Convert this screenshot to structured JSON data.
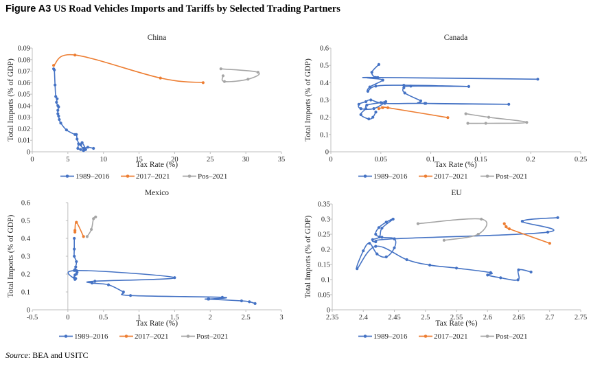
{
  "figure": {
    "label": "Figure A3",
    "title": "US Road Vehicles Imports and Tariffs by Selected Trading Partners",
    "source_label": "Source",
    "source_text": ": BEA and USITC"
  },
  "colors": {
    "series_1989_2016": "#4472C4",
    "series_2017_2021": "#ED7D31",
    "series_post_2021": "#A5A5A5"
  },
  "chart_data": [
    {
      "type": "line",
      "title": "China",
      "xlabel": "Tax Rate (%)",
      "ylabel": "Total Imports (% of GDP)",
      "xlim": [
        0,
        35
      ],
      "ylim": [
        0,
        0.09
      ],
      "xticks": [
        0,
        5,
        10,
        15,
        20,
        25,
        30,
        35
      ],
      "yticks": [
        0,
        0.01,
        0.02,
        0.03,
        0.04,
        0.05,
        0.06,
        0.07,
        0.08,
        0.09
      ],
      "xtick_labels": [
        "0",
        "5",
        "10",
        "15",
        "20",
        "25",
        "30",
        "35"
      ],
      "ytick_labels": [
        "0",
        "0.01",
        "0.02",
        "0.03",
        "0.04",
        "0.05",
        "0.06",
        "0.07",
        "0.08",
        "0.09"
      ],
      "grid": false,
      "legend_position": "bottom",
      "series": [
        {
          "name": "1989–2016",
          "color": "#4472C4",
          "points": [
            [
              8.6,
              0.003
            ],
            [
              7.8,
              0.004
            ],
            [
              7.2,
              0.003
            ],
            [
              6.8,
              0.006
            ],
            [
              7.0,
              0.008
            ],
            [
              7.5,
              0.002
            ],
            [
              7.2,
              0.001
            ],
            [
              6.8,
              0.002
            ],
            [
              6.4,
              0.003
            ],
            [
              6.5,
              0.007
            ],
            [
              6.3,
              0.011
            ],
            [
              6.2,
              0.015
            ],
            [
              6.0,
              0.015
            ],
            [
              4.8,
              0.019
            ],
            [
              4.0,
              0.025
            ],
            [
              3.8,
              0.028
            ],
            [
              3.7,
              0.031
            ],
            [
              3.6,
              0.033
            ],
            [
              3.6,
              0.036
            ],
            [
              3.7,
              0.039
            ],
            [
              3.6,
              0.04
            ],
            [
              3.4,
              0.043
            ],
            [
              3.5,
              0.046
            ],
            [
              3.3,
              0.048
            ],
            [
              3.2,
              0.058
            ],
            [
              3.1,
              0.071
            ],
            [
              3.0,
              0.072
            ]
          ]
        },
        {
          "name": "2017–2021",
          "color": "#ED7D31",
          "points": [
            [
              3.0,
              0.075
            ],
            [
              6.0,
              0.084
            ],
            [
              18.0,
              0.064
            ],
            [
              24.0,
              0.06
            ]
          ]
        },
        {
          "name": "Pos–2021",
          "color": "#A5A5A5",
          "points": [
            [
              26.5,
              0.072
            ],
            [
              31.7,
              0.069
            ],
            [
              30.3,
              0.063
            ],
            [
              27.0,
              0.061
            ],
            [
              26.8,
              0.066
            ]
          ]
        }
      ]
    },
    {
      "type": "line",
      "title": "Canada",
      "xlabel": "Tax Rate (%)",
      "ylabel": "Total Imports (% of GDP)",
      "xlim": [
        0,
        0.25
      ],
      "ylim": [
        0,
        0.6
      ],
      "xticks": [
        0,
        0.05,
        0.1,
        0.15,
        0.2,
        0.25
      ],
      "yticks": [
        0,
        0.1,
        0.2,
        0.3,
        0.4,
        0.5,
        0.6
      ],
      "xtick_labels": [
        "0",
        "0.05",
        "0.1",
        "0.15",
        "0.2",
        "0.25"
      ],
      "ytick_labels": [
        "0",
        "0.1",
        "0.2",
        "0.3",
        "0.4",
        "0.5",
        "0.6"
      ],
      "grid": false,
      "legend_position": "bottom",
      "series": [
        {
          "name": "1989–2016",
          "color": "#4472C4",
          "points": [
            [
              0.048,
              0.505
            ],
            [
              0.041,
              0.46
            ],
            [
              0.044,
              0.43
            ],
            [
              0.045,
              0.43
            ],
            [
              0.207,
              0.42
            ],
            [
              0.047,
              0.43
            ],
            [
              0.052,
              0.415
            ],
            [
              0.039,
              0.375
            ],
            [
              0.037,
              0.35
            ],
            [
              0.045,
              0.38
            ],
            [
              0.073,
              0.385
            ],
            [
              0.138,
              0.378
            ],
            [
              0.08,
              0.38
            ],
            [
              0.073,
              0.37
            ],
            [
              0.074,
              0.34
            ],
            [
              0.09,
              0.295
            ],
            [
              0.094,
              0.28
            ],
            [
              0.178,
              0.275
            ],
            [
              0.095,
              0.28
            ],
            [
              0.054,
              0.28
            ],
            [
              0.04,
              0.3
            ],
            [
              0.035,
              0.29
            ],
            [
              0.028,
              0.275
            ],
            [
              0.03,
              0.25
            ],
            [
              0.043,
              0.25
            ],
            [
              0.055,
              0.29
            ],
            [
              0.05,
              0.285
            ],
            [
              0.036,
              0.27
            ],
            [
              0.035,
              0.25
            ],
            [
              0.03,
              0.215
            ],
            [
              0.038,
              0.19
            ],
            [
              0.042,
              0.2
            ],
            [
              0.045,
              0.23
            ]
          ]
        },
        {
          "name": "2017–2021",
          "color": "#ED7D31",
          "points": [
            [
              0.048,
              0.25
            ],
            [
              0.052,
              0.255
            ],
            [
              0.057,
              0.255
            ],
            [
              0.117,
              0.198
            ]
          ]
        },
        {
          "name": "Post–2021",
          "color": "#A5A5A5",
          "points": [
            [
              0.135,
              0.22
            ],
            [
              0.158,
              0.2
            ],
            [
              0.196,
              0.17
            ],
            [
              0.155,
              0.165
            ],
            [
              0.137,
              0.165
            ]
          ]
        }
      ]
    },
    {
      "type": "line",
      "title": "Mexico",
      "xlabel": "Tax Rate (%)",
      "ylabel": "Total Imports (% of GDP)",
      "xlim": [
        -0.5,
        3
      ],
      "ylim": [
        0,
        0.6
      ],
      "xticks": [
        -0.5,
        0,
        0.5,
        1,
        1.5,
        2,
        2.5,
        3
      ],
      "yticks": [
        0,
        0.1,
        0.2,
        0.3,
        0.4,
        0.5,
        0.6
      ],
      "xtick_labels": [
        "-0.5",
        "0",
        "0.5",
        "1",
        "1.5",
        "2",
        "2.5",
        "3"
      ],
      "ytick_labels": [
        "0",
        "0.1",
        "0.2",
        "0.3",
        "0.4",
        "0.5",
        "0.6"
      ],
      "grid": false,
      "legend_position": "bottom",
      "series": [
        {
          "name": "1989–2016",
          "color": "#4472C4",
          "points": [
            [
              0.09,
              0.4
            ],
            [
              0.09,
              0.34
            ],
            [
              0.09,
              0.3
            ],
            [
              0.12,
              0.27
            ],
            [
              0.11,
              0.24
            ],
            [
              0.1,
              0.225
            ],
            [
              0.09,
              0.22
            ],
            [
              0.13,
              0.21
            ],
            [
              0.12,
              0.2
            ],
            [
              0.1,
              0.195
            ],
            [
              0.09,
              0.18
            ],
            [
              0.11,
              0.175
            ],
            [
              0.1,
              0.17
            ],
            [
              0.12,
              0.22
            ],
            [
              1.5,
              0.18
            ],
            [
              0.38,
              0.16
            ],
            [
              0.34,
              0.15
            ],
            [
              0.57,
              0.14
            ],
            [
              0.78,
              0.1
            ],
            [
              0.88,
              0.08
            ],
            [
              2.17,
              0.07
            ],
            [
              1.98,
              0.06
            ],
            [
              1.97,
              0.06
            ],
            [
              2.44,
              0.05
            ],
            [
              2.55,
              0.045
            ],
            [
              2.63,
              0.035
            ]
          ]
        },
        {
          "name": "2017–2021",
          "color": "#ED7D31",
          "points": [
            [
              0.1,
              0.435
            ],
            [
              0.1,
              0.445
            ],
            [
              0.12,
              0.49
            ],
            [
              0.22,
              0.41
            ]
          ]
        },
        {
          "name": "Post–2021",
          "color": "#A5A5A5",
          "points": [
            [
              0.27,
              0.41
            ],
            [
              0.33,
              0.45
            ],
            [
              0.36,
              0.51
            ],
            [
              0.39,
              0.52
            ]
          ]
        }
      ]
    },
    {
      "type": "line",
      "title": "EU",
      "xlabel": "Tax Rate (%)",
      "ylabel": "Total Imports (% of GDP)",
      "xlim": [
        2.35,
        2.75
      ],
      "ylim": [
        0,
        0.35
      ],
      "xticks": [
        2.35,
        2.4,
        2.45,
        2.5,
        2.55,
        2.6,
        2.65,
        2.7,
        2.75
      ],
      "yticks": [
        0,
        0.05,
        0.1,
        0.15,
        0.2,
        0.25,
        0.3,
        0.35
      ],
      "xtick_labels": [
        "2.35",
        "2.4",
        "2.45",
        "2.5",
        "2.55",
        "2.6",
        "2.65",
        "2.7",
        "2.75"
      ],
      "ytick_labels": [
        "0",
        "0.05",
        "0.1",
        "0.15",
        "0.2",
        "0.25",
        "0.3",
        "0.35"
      ],
      "grid": false,
      "legend_position": "bottom",
      "series": [
        {
          "name": "1989–2016",
          "color": "#4472C4",
          "points": [
            [
              2.713,
              0.305
            ],
            [
              2.656,
              0.293
            ],
            [
              2.697,
              0.257
            ],
            [
              2.45,
              0.235
            ],
            [
              2.42,
              0.225
            ],
            [
              2.415,
              0.232
            ],
            [
              2.426,
              0.241
            ],
            [
              2.43,
              0.27
            ],
            [
              2.448,
              0.3
            ],
            [
              2.437,
              0.29
            ],
            [
              2.425,
              0.272
            ],
            [
              2.42,
              0.25
            ],
            [
              2.43,
              0.24
            ],
            [
              2.45,
              0.235
            ],
            [
              2.45,
              0.205
            ],
            [
              2.437,
              0.175
            ],
            [
              2.422,
              0.185
            ],
            [
              2.41,
              0.22
            ],
            [
              2.4,
              0.195
            ],
            [
              2.39,
              0.136
            ],
            [
              2.42,
              0.21
            ],
            [
              2.47,
              0.166
            ],
            [
              2.507,
              0.148
            ],
            [
              2.55,
              0.138
            ],
            [
              2.605,
              0.123
            ],
            [
              2.6,
              0.115
            ],
            [
              2.621,
              0.106
            ],
            [
              2.649,
              0.099
            ],
            [
              2.65,
              0.132
            ],
            [
              2.67,
              0.125
            ]
          ]
        },
        {
          "name": "2017–2021",
          "color": "#ED7D31",
          "points": [
            [
              2.627,
              0.285
            ],
            [
              2.63,
              0.275
            ],
            [
              2.635,
              0.268
            ],
            [
              2.7,
              0.22
            ]
          ]
        },
        {
          "name": "Post–2021",
          "color": "#A5A5A5",
          "points": [
            [
              2.53,
              0.23
            ],
            [
              2.585,
              0.25
            ],
            [
              2.59,
              0.3
            ],
            [
              2.488,
              0.285
            ]
          ]
        }
      ]
    }
  ]
}
